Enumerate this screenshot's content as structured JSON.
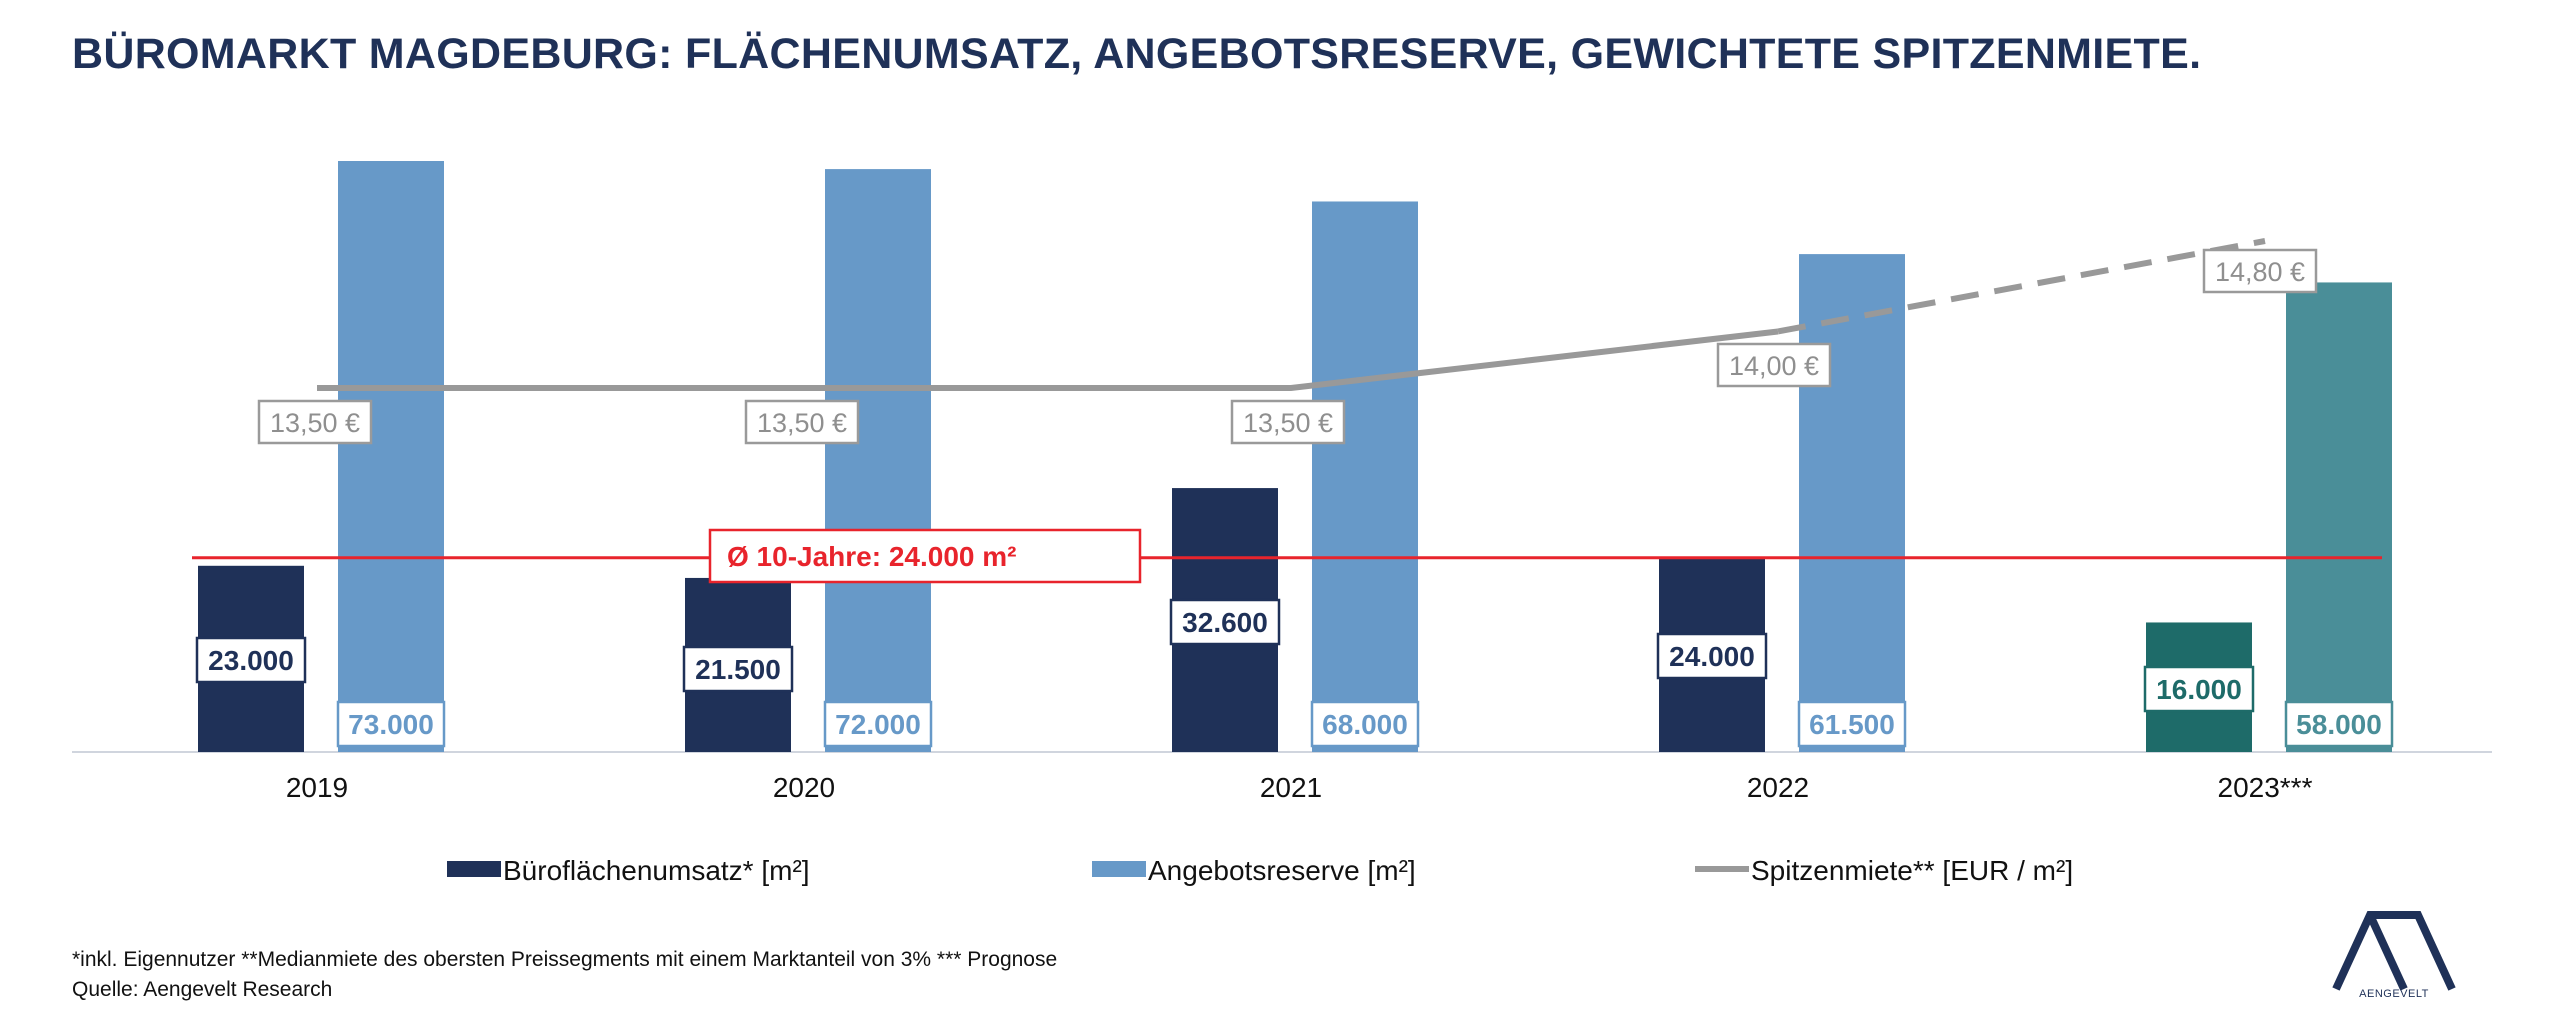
{
  "title": "BÜROMARKT MAGDEBURG: FLÄCHENUMSATZ, ANGEBOTSRESERVE, GEWICHTETE SPITZENMIETE.",
  "chart_data": {
    "type": "bar",
    "categories": [
      "2019",
      "2020",
      "2021",
      "2022",
      "2023***"
    ],
    "series": [
      {
        "name": "Büroflächenumsatz* [m²]",
        "type": "bar",
        "values": [
          23000,
          21500,
          32600,
          24000,
          16000
        ],
        "labels": [
          "23.000",
          "21.500",
          "32.600",
          "24.000",
          "16.000"
        ],
        "color": "#1f3158",
        "forecast_color": "#1e6b69"
      },
      {
        "name": "Angebotsreserve [m²]",
        "type": "bar",
        "values": [
          73000,
          72000,
          68000,
          61500,
          58000
        ],
        "labels": [
          "73.000",
          "72.000",
          "68.000",
          "61.500",
          "58.000"
        ],
        "color": "#6799c8",
        "forecast_color": "#4a8e98"
      },
      {
        "name": "Spitzenmiete** [EUR / m²]",
        "type": "line",
        "axis": "secondary",
        "values": [
          13.5,
          13.5,
          13.5,
          14.0,
          14.8
        ],
        "labels": [
          "13,50 €",
          "13,50 €",
          "13,50 €",
          "14,00 €",
          "14,80 €"
        ],
        "color": "#999999",
        "dashed_from_index": 3
      }
    ],
    "reference_line": {
      "value": 24000,
      "label": "Ø 10-Jahre: 24.000 m²",
      "color": "#e8242c"
    },
    "ylim": [
      0,
      73000
    ],
    "y2lim": [
      11.5,
      15.0
    ],
    "grid": false,
    "legend": "bottom"
  },
  "footnote": "*inkl. Eigennutzer **Medianmiete des obersten Preissegments mit einem Marktanteil von 3% *** Prognose",
  "source": "Quelle: Aengevelt Research",
  "logo_text": "AENGEVELT"
}
